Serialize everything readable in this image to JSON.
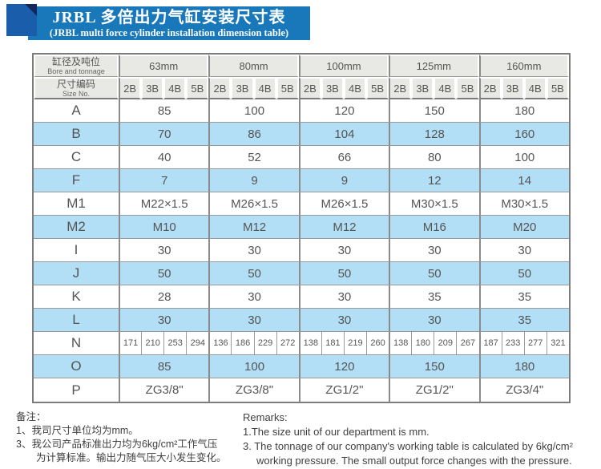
{
  "banner": {
    "title_cn": "JRBL 多倍出力气缸安装尺寸表",
    "title_en": "(JRBL multi force cylinder installation dimension table)"
  },
  "colors": {
    "banner_blue": "#1878ba",
    "square_blue": "#1a5dab",
    "fold_navy": "#13275f",
    "header_gray": "#e8e8e4",
    "row_blue": "#b2dff5",
    "border_dark": "#7c7c7c",
    "border_light": "#9a9a9a",
    "text_gray": "#555555"
  },
  "table": {
    "header": {
      "bore_label_cn": "缸径及吨位",
      "bore_label_en": "Bore and tonnage",
      "size_label_cn": "尺寸编码",
      "size_label_en": "Size No."
    },
    "bore_sizes": [
      "63mm",
      "80mm",
      "100mm",
      "125mm",
      "160mm"
    ],
    "size_codes": [
      "2B",
      "3B",
      "4B",
      "5B"
    ],
    "rows": [
      {
        "label": "A",
        "values": [
          "85",
          "100",
          "120",
          "150",
          "180"
        ]
      },
      {
        "label": "B",
        "values": [
          "70",
          "86",
          "104",
          "128",
          "160"
        ]
      },
      {
        "label": "C",
        "values": [
          "40",
          "52",
          "66",
          "80",
          "100"
        ]
      },
      {
        "label": "F",
        "values": [
          "7",
          "9",
          "9",
          "12",
          "14"
        ]
      },
      {
        "label": "M1",
        "values": [
          "M22×1.5",
          "M26×1.5",
          "M26×1.5",
          "M30×1.5",
          "M30×1.5"
        ]
      },
      {
        "label": "M2",
        "values": [
          "M10",
          "M12",
          "M12",
          "M16",
          "M20"
        ]
      },
      {
        "label": "I",
        "values": [
          "30",
          "30",
          "30",
          "30",
          "30"
        ]
      },
      {
        "label": "J",
        "values": [
          "50",
          "50",
          "50",
          "50",
          "50"
        ]
      },
      {
        "label": "K",
        "values": [
          "28",
          "30",
          "30",
          "35",
          "35"
        ]
      },
      {
        "label": "L",
        "values": [
          "30",
          "30",
          "30",
          "30",
          "35"
        ]
      },
      {
        "label": "N",
        "values": [
          "171",
          "210",
          "253",
          "294",
          "136",
          "186",
          "229",
          "272",
          "138",
          "181",
          "219",
          "260",
          "138",
          "180",
          "209",
          "267",
          "187",
          "233",
          "277",
          "321"
        ]
      },
      {
        "label": "O",
        "values": [
          "85",
          "100",
          "120",
          "150",
          "180"
        ]
      },
      {
        "label": "P",
        "values": [
          "ZG3/8\"",
          "ZG3/8\"",
          "ZG1/2\"",
          "ZG1/2\"",
          "ZG3/4\""
        ]
      }
    ]
  },
  "footer_cn": {
    "heading": "备注：",
    "line1": "1、我司尺寸单位均为mm。",
    "line2": "3、我公司产品标准出力均为6kg/cm²工作气压",
    "line3": "为计算标准。输出力随气压大小发生变化。"
  },
  "footer_en": {
    "heading": "Remarks:",
    "line1": "1.The size unit of our department is mm.",
    "line2": "3. The tonnage of our company's working table is calculated by 6kg/cm²",
    "line3": "working pressure. The small output force changes with the pressure."
  }
}
